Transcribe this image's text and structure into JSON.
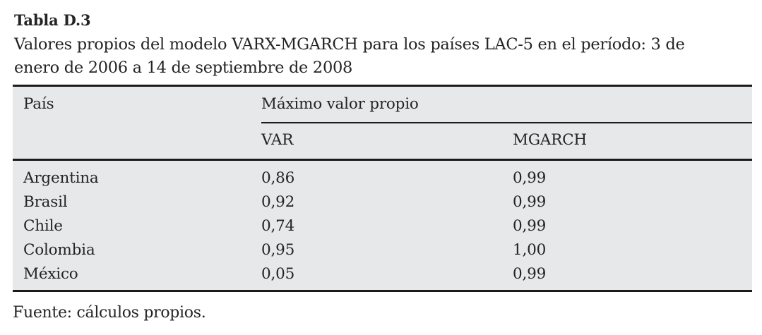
{
  "page": {
    "label": "Tabla D.3",
    "caption_lines": [
      "Valores propios del modelo VARX-MGARCH para los países LAC-5 en el período: 3 de",
      "enero de 2006 a 14 de septiembre de 2008"
    ],
    "source_note": "Fuente: cálculos propios."
  },
  "table": {
    "col_pais_header": "País",
    "group_header": "Máximo valor propio",
    "subheaders": [
      "VAR",
      "MGARCH"
    ],
    "rows": [
      {
        "pais": "Argentina",
        "var": "0,86",
        "mgarch": "0,99"
      },
      {
        "pais": "Brasil",
        "var": "0,92",
        "mgarch": "0,99"
      },
      {
        "pais": "Chile",
        "var": "0,74",
        "mgarch": "0,99"
      },
      {
        "pais": "Colombia",
        "var": "0,95",
        "mgarch": "1,00"
      },
      {
        "pais": "México",
        "var": "0,05",
        "mgarch": "0,99"
      }
    ]
  },
  "colors": {
    "table_background": "#e7e8e9",
    "rule": "#1b1b1b",
    "text": "#242424",
    "page_background": "#ffffff"
  }
}
